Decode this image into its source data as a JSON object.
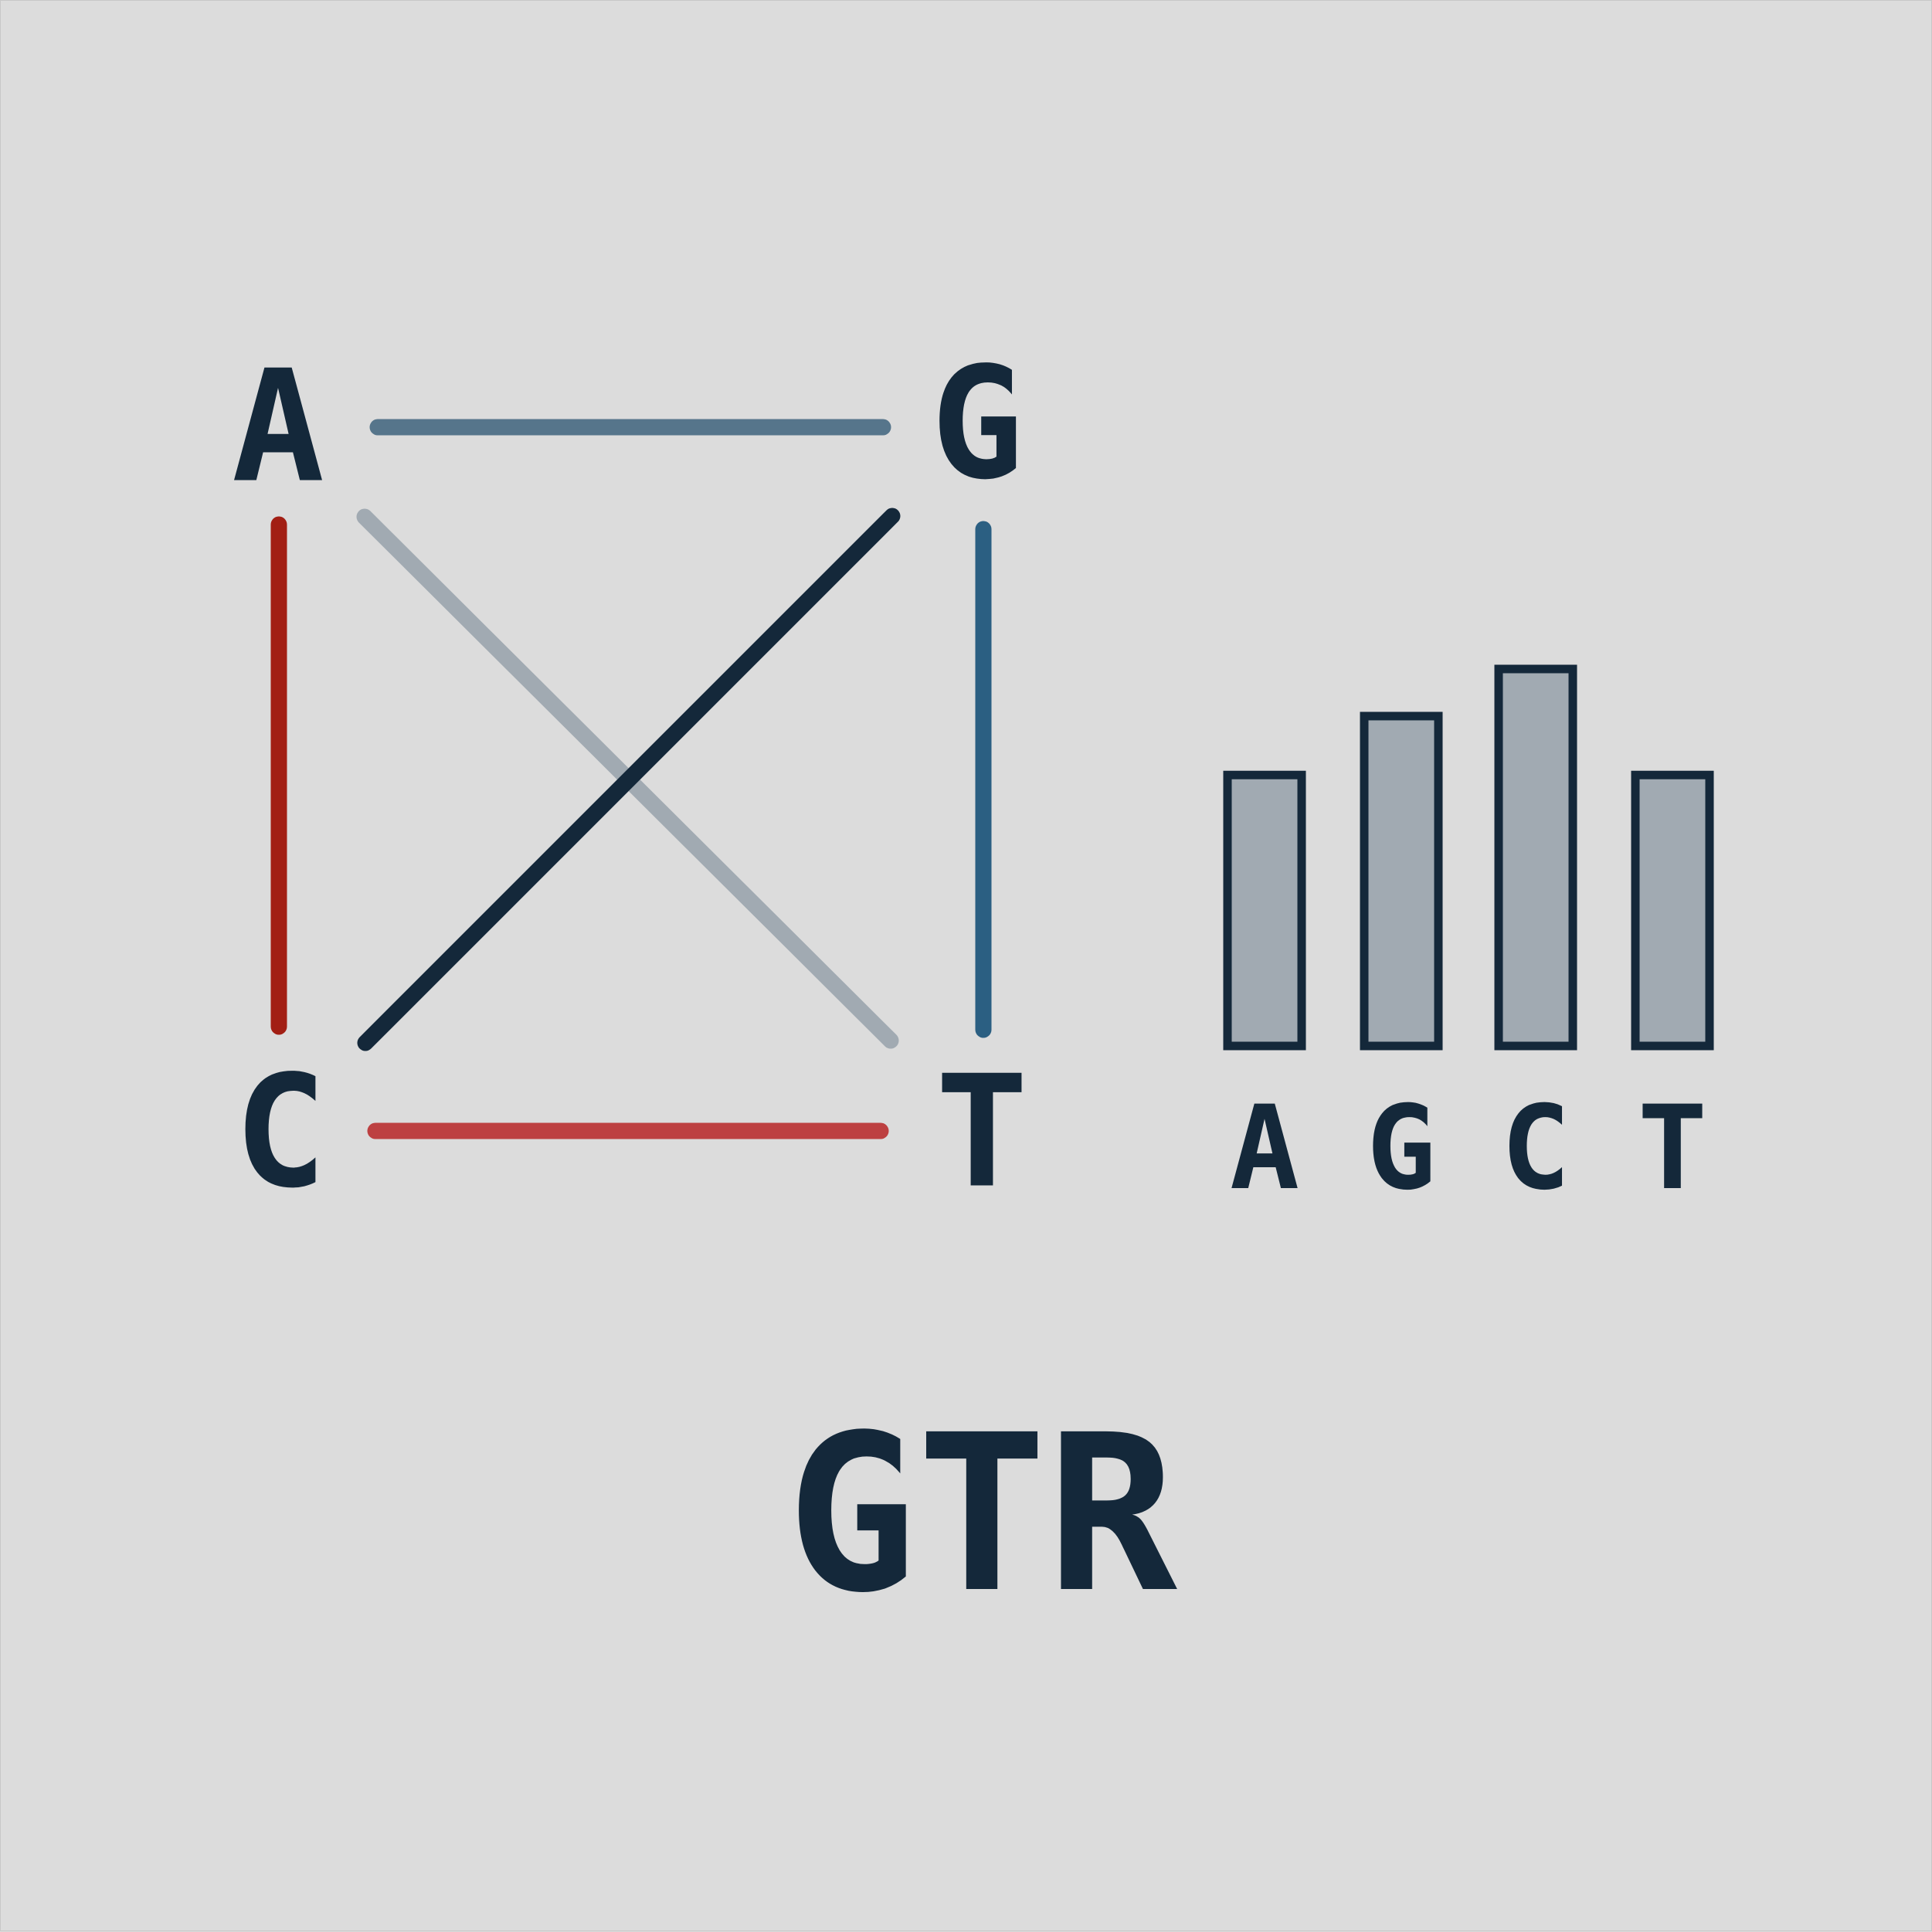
{
  "title": "GTR",
  "colors": {
    "background": "#dcdcdc",
    "ink": "#14283a",
    "bar_fill": "#a1aab2",
    "edge_A_G": "#56758b",
    "edge_A_C": "#a21f14",
    "edge_G_T": "#2b5f82",
    "edge_C_T": "#bd4041",
    "edge_A_T": "#a1aab2",
    "edge_G_C": "#14283a"
  },
  "nodes": {
    "A": "A",
    "G": "G",
    "C": "C",
    "T": "T"
  },
  "edges": [
    {
      "from": "A",
      "to": "G",
      "color": "#56758b"
    },
    {
      "from": "A",
      "to": "C",
      "color": "#a21f14"
    },
    {
      "from": "G",
      "to": "T",
      "color": "#2b5f82"
    },
    {
      "from": "C",
      "to": "T",
      "color": "#bd4041"
    },
    {
      "from": "A",
      "to": "T",
      "color": "#a1aab2"
    },
    {
      "from": "G",
      "to": "C",
      "color": "#14283a"
    }
  ],
  "chart_data": {
    "type": "bar",
    "categories": [
      "A",
      "G",
      "C",
      "T"
    ],
    "values": [
      0.23,
      0.28,
      0.32,
      0.23
    ],
    "title": "",
    "xlabel": "",
    "ylabel": "",
    "ylim": [
      0,
      0.32
    ],
    "grid": false,
    "legend": "none"
  }
}
